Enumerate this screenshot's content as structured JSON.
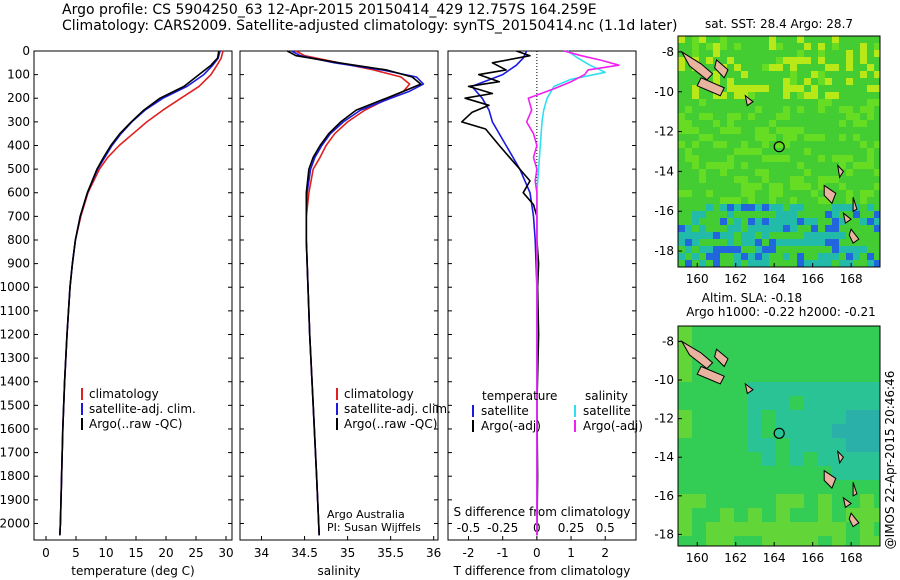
{
  "header": {
    "line1": "Argo profile: CS 5904250_63 12-Apr-2015 20150414_429 12.757S 164.259E",
    "line2": "Climatology: CARS2009. Satellite-adjusted climatology: synTS_20150414.nc (1.1d later)"
  },
  "colors": {
    "climatology": "#e02020",
    "satellite": "#1a1ae0",
    "argo": "#000000",
    "satellite_sal": "#30e0f0",
    "argo_sal": "#f020f0"
  },
  "chart_data": [
    {
      "type": "line",
      "id": "temperature",
      "xlabel": "temperature (deg C)",
      "xlim": [
        -2,
        31
      ],
      "ylim": [
        2070,
        0
      ],
      "xticks": [
        0,
        5,
        10,
        15,
        20,
        25,
        30
      ],
      "yticks": [
        0,
        100,
        200,
        300,
        400,
        500,
        600,
        700,
        800,
        900,
        1000,
        1100,
        1200,
        1300,
        1400,
        1500,
        1600,
        1700,
        1800,
        1900,
        2000
      ],
      "legend": [
        "climatology",
        "satellite-adj. clim.",
        "Argo(..raw -QC)"
      ],
      "series": [
        {
          "name": "climatology",
          "depth": [
            0,
            30,
            60,
            100,
            150,
            200,
            250,
            300,
            350,
            400,
            450,
            500,
            600,
            700,
            800,
            900,
            1000,
            1200,
            1400,
            1600,
            1800,
            2000,
            2050
          ],
          "values": [
            29.5,
            29.2,
            28.5,
            27.5,
            25.5,
            22.5,
            19.5,
            16.8,
            14.5,
            12.2,
            10.3,
            8.9,
            7.0,
            5.8,
            4.9,
            4.4,
            4.0,
            3.5,
            3.1,
            2.8,
            2.6,
            2.4,
            2.3
          ]
        },
        {
          "name": "satellite-adj. clim.",
          "depth": [
            0,
            30,
            60,
            100,
            150,
            200,
            250,
            300,
            350,
            400,
            450,
            500,
            600,
            700,
            800,
            900,
            1000,
            1200,
            1400,
            1600,
            1800,
            2000,
            2050
          ],
          "values": [
            29.0,
            28.7,
            27.8,
            26.3,
            23.5,
            19.5,
            16.5,
            14.3,
            12.5,
            11.0,
            9.8,
            8.6,
            6.9,
            5.7,
            4.9,
            4.4,
            4.0,
            3.5,
            3.1,
            2.8,
            2.6,
            2.4,
            2.3
          ]
        },
        {
          "name": "Argo(..raw -QC)",
          "depth": [
            0,
            30,
            60,
            100,
            150,
            200,
            250,
            300,
            350,
            400,
            450,
            500,
            600,
            700,
            800,
            900,
            1000,
            1200,
            1400,
            1600,
            1800,
            2000,
            2050
          ],
          "values": [
            28.8,
            28.6,
            27.5,
            25.5,
            23.0,
            19.0,
            16.3,
            14.2,
            12.3,
            10.8,
            9.6,
            8.5,
            6.9,
            5.7,
            4.9,
            4.4,
            4.0,
            3.5,
            3.1,
            2.8,
            2.6,
            2.4,
            2.3
          ]
        }
      ]
    },
    {
      "type": "line",
      "id": "salinity",
      "xlabel": "salinity",
      "xlim": [
        33.75,
        36.05
      ],
      "ylim": [
        2070,
        0
      ],
      "xticks": [
        34,
        34.5,
        35,
        35.5,
        36
      ],
      "legend": [
        "climatology",
        "satellite-adj. clim.",
        "Argo(..raw -QC)"
      ],
      "footer": [
        "Argo Australia",
        "PI: Susan Wijffels"
      ],
      "series": [
        {
          "name": "climatology",
          "depth": [
            0,
            20,
            50,
            80,
            110,
            140,
            170,
            200,
            250,
            300,
            350,
            400,
            450,
            500,
            600,
            700,
            800,
            1000,
            1200,
            1500,
            1800,
            2050
          ],
          "values": [
            34.4,
            34.5,
            34.9,
            35.3,
            35.62,
            35.72,
            35.65,
            35.48,
            35.2,
            35.0,
            34.85,
            34.75,
            34.68,
            34.6,
            34.55,
            34.52,
            34.52,
            34.54,
            34.56,
            34.6,
            34.64,
            34.67
          ]
        },
        {
          "name": "satellite-adj. clim.",
          "depth": [
            0,
            20,
            50,
            80,
            110,
            140,
            170,
            200,
            250,
            300,
            350,
            400,
            450,
            500,
            600,
            700,
            800,
            1000,
            1200,
            1500,
            1800,
            2050
          ],
          "values": [
            34.35,
            34.45,
            34.85,
            35.4,
            35.8,
            35.88,
            35.72,
            35.5,
            35.15,
            34.95,
            34.8,
            34.7,
            34.62,
            34.57,
            34.53,
            34.52,
            34.52,
            34.54,
            34.56,
            34.6,
            34.64,
            34.67
          ]
        },
        {
          "name": "Argo(..raw -QC)",
          "depth": [
            0,
            20,
            50,
            80,
            110,
            140,
            170,
            200,
            250,
            300,
            350,
            400,
            450,
            500,
            600,
            700,
            800,
            1000,
            1200,
            1500,
            1800,
            2050
          ],
          "values": [
            34.3,
            34.4,
            34.9,
            35.45,
            35.75,
            35.85,
            35.65,
            35.45,
            35.1,
            34.92,
            34.78,
            34.68,
            34.6,
            34.55,
            34.52,
            34.52,
            34.52,
            34.54,
            34.56,
            34.6,
            34.64,
            34.67
          ]
        }
      ]
    },
    {
      "type": "line",
      "id": "difference",
      "xlabel": "T difference from climatology",
      "top_xlabel": "S difference from climatology",
      "xlim": [
        -2.6,
        2.9
      ],
      "ylim": [
        2070,
        0
      ],
      "xticks": [
        -2,
        -1,
        0,
        1,
        2
      ],
      "top_xticks": [
        "-0.5",
        "-0.25",
        "0",
        "0.25",
        "0.5"
      ],
      "legend_titles": [
        "temperature",
        "salinity"
      ],
      "legend": [
        "satellite",
        "Argo(-adj)",
        "satellite",
        "Argo(-adj)"
      ],
      "series": [
        {
          "name": "satellite",
          "depth": [
            0,
            30,
            60,
            100,
            150,
            200,
            250,
            300,
            400,
            500,
            600,
            700,
            800,
            1000,
            1500,
            2050
          ],
          "values": [
            -0.3,
            -0.4,
            -0.6,
            -1.0,
            -1.9,
            -1.6,
            -1.4,
            -1.3,
            -0.9,
            -0.5,
            -0.2,
            -0.1,
            -0.05,
            0,
            0,
            0
          ]
        },
        {
          "name": "Argo(-adj)",
          "depth": [
            0,
            20,
            50,
            80,
            100,
            130,
            150,
            180,
            200,
            230,
            260,
            300,
            330,
            400,
            450,
            500,
            550,
            600,
            650,
            700,
            800,
            900,
            1000,
            1200,
            1500,
            1800,
            2050
          ],
          "values": [
            -0.6,
            -0.2,
            -1.3,
            -0.9,
            -1.7,
            -1.1,
            -2.0,
            -1.3,
            -2.1,
            -1.4,
            -1.9,
            -2.2,
            -1.5,
            -1.1,
            -0.8,
            -0.5,
            -0.2,
            -0.4,
            -0.1,
            0,
            0,
            0.05,
            0.02,
            0.05,
            0,
            0.02,
            0
          ]
        },
        {
          "name": "satellite",
          "depth": [
            0,
            30,
            60,
            90,
            120,
            150,
            200,
            250,
            300,
            400,
            500,
            600,
            800,
            1000,
            1500,
            2050
          ],
          "values": [
            0.9,
            1.2,
            1.55,
            2.0,
            1.0,
            0.5,
            0.3,
            0.2,
            0.15,
            0.1,
            0.05,
            0,
            0,
            0,
            0,
            0
          ]
        },
        {
          "name": "Argo(-adj)",
          "depth": [
            0,
            20,
            40,
            60,
            80,
            100,
            130,
            160,
            200,
            250,
            300,
            350,
            400,
            450,
            500,
            550,
            600,
            700,
            800,
            1000,
            1500,
            2050
          ],
          "values": [
            0.8,
            1.3,
            1.9,
            2.4,
            1.5,
            1.4,
            1.0,
            0.5,
            -0.25,
            -0.15,
            -0.3,
            -0.1,
            0,
            -0.1,
            0,
            -0.05,
            0,
            0,
            0,
            0,
            0,
            0
          ]
        }
      ]
    },
    {
      "type": "heatmap",
      "id": "sst-map",
      "title": "sat. SST: 28.4  Argo: 28.7",
      "xlim": [
        159,
        169.5
      ],
      "ylim": [
        -18.8,
        -7.2
      ],
      "xticks": [
        160,
        162,
        164,
        166,
        168
      ],
      "yticks": [
        -8,
        -10,
        -12,
        -14,
        -16,
        -18
      ],
      "marker": {
        "lon": 164.26,
        "lat": -12.76
      }
    },
    {
      "type": "heatmap",
      "id": "sla-map",
      "title": "Altim. SLA: -0.18",
      "subtitle": "Argo h1000: -0.22 h2000: -0.21",
      "xlim": [
        159,
        169.5
      ],
      "ylim": [
        -18.6,
        -7.2
      ],
      "xticks": [
        160,
        162,
        164,
        166,
        168
      ],
      "yticks": [
        -8,
        -10,
        -12,
        -14,
        -16,
        -18
      ],
      "marker": {
        "lon": 164.26,
        "lat": -12.76
      }
    }
  ],
  "stamp": "@IMOS 22-Apr-2015 20:46:46"
}
